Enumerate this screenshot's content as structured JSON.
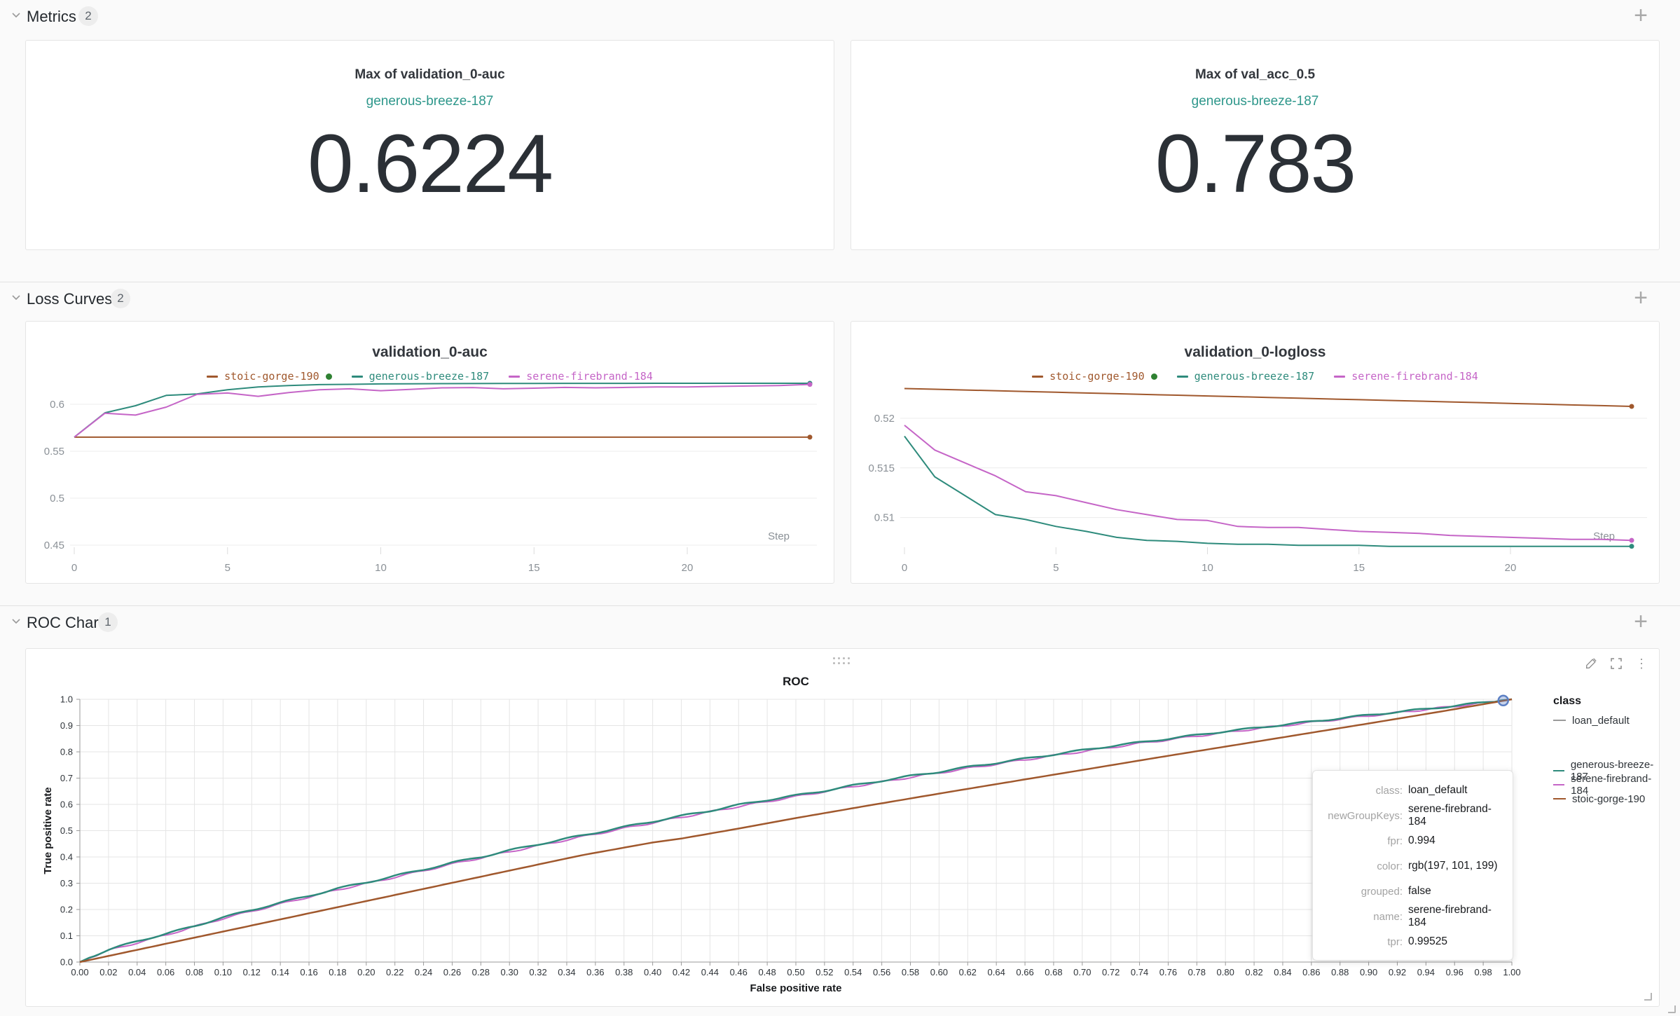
{
  "colors": {
    "teal": "#2e8b7c",
    "teal_link": "#2e978b",
    "magenta": "#c565c7",
    "sienna": "#a0582d",
    "class_gray": "#9a9a9a",
    "live_green": "#2f8132",
    "hover_blue": "#5b7fc4"
  },
  "sections": {
    "metrics": {
      "title": "Metrics",
      "count": "2"
    },
    "loss_curves": {
      "title": "Loss Curves",
      "count": "2"
    },
    "roc_chart": {
      "title": "ROC Chart",
      "count": "1"
    }
  },
  "runs": [
    {
      "name": "stoic-gorge-190",
      "color": "#a0582d",
      "live": true
    },
    {
      "name": "generous-breeze-187",
      "color": "#2e8b7c",
      "live": false
    },
    {
      "name": "serene-firebrand-184",
      "color": "#c565c7",
      "live": false
    }
  ],
  "metric_cards": [
    {
      "title": "Max of validation_0-auc",
      "run_name": "generous-breeze-187",
      "value": "0.6224"
    },
    {
      "title": "Max of val_acc_0.5",
      "run_name": "generous-breeze-187",
      "value": "0.783"
    }
  ],
  "chart_data": [
    {
      "type": "line",
      "title": "validation_0-auc",
      "xlabel": "Step",
      "x": [
        0,
        1,
        2,
        3,
        4,
        5,
        6,
        7,
        8,
        9,
        10,
        11,
        12,
        13,
        14,
        15,
        16,
        17,
        18,
        19,
        20,
        21,
        22,
        23,
        24
      ],
      "xticks": [
        0,
        5,
        10,
        15,
        20
      ],
      "yticks": [
        0.45,
        0.5,
        0.55,
        0.6
      ],
      "ylim": [
        0.442,
        0.624
      ],
      "series": [
        {
          "name": "stoic-gorge-190",
          "values": [
            0.565,
            0.565,
            0.565,
            0.565,
            0.565,
            0.565,
            0.565,
            0.565,
            0.565,
            0.565,
            0.565,
            0.565,
            0.565,
            0.565,
            0.565,
            0.565,
            0.565,
            0.565,
            0.565,
            0.565,
            0.565,
            0.565,
            0.565,
            0.565,
            0.565
          ]
        },
        {
          "name": "generous-breeze-187",
          "values": [
            0.565,
            0.591,
            0.5985,
            0.6095,
            0.611,
            0.6155,
            0.6185,
            0.62,
            0.621,
            0.6213,
            0.6217,
            0.6219,
            0.622,
            0.6221,
            0.6222,
            0.6222,
            0.6223,
            0.6223,
            0.6223,
            0.6224,
            0.6224,
            0.6224,
            0.6224,
            0.6224,
            0.6224
          ]
        },
        {
          "name": "serene-firebrand-184",
          "values": [
            0.565,
            0.5905,
            0.5885,
            0.597,
            0.6105,
            0.612,
            0.6085,
            0.6125,
            0.6155,
            0.6165,
            0.6145,
            0.616,
            0.6175,
            0.6178,
            0.6165,
            0.6172,
            0.618,
            0.6175,
            0.618,
            0.6185,
            0.6185,
            0.619,
            0.6195,
            0.62,
            0.6212
          ]
        }
      ]
    },
    {
      "type": "line",
      "title": "validation_0-logloss",
      "xlabel": "Step",
      "x": [
        0,
        1,
        2,
        3,
        4,
        5,
        6,
        7,
        8,
        9,
        10,
        11,
        12,
        13,
        14,
        15,
        16,
        17,
        18,
        19,
        20,
        21,
        22,
        23,
        24
      ],
      "xticks": [
        0,
        5,
        10,
        15,
        20
      ],
      "yticks": [
        0.51,
        0.515,
        0.52
      ],
      "ylim": [
        0.5064,
        0.5237
      ],
      "series": [
        {
          "name": "stoic-gorge-190",
          "values": [
            0.523,
            0.52293,
            0.52285,
            0.52278,
            0.5227,
            0.52263,
            0.52255,
            0.52248,
            0.5224,
            0.52233,
            0.52225,
            0.52218,
            0.5221,
            0.52203,
            0.52195,
            0.52188,
            0.5218,
            0.52173,
            0.52165,
            0.52158,
            0.5215,
            0.52143,
            0.52135,
            0.52128,
            0.5212
          ]
        },
        {
          "name": "generous-breeze-187",
          "values": [
            0.5182,
            0.5141,
            0.5122,
            0.5103,
            0.5098,
            0.5091,
            0.5086,
            0.508,
            0.5077,
            0.5076,
            0.5074,
            0.5073,
            0.5073,
            0.5072,
            0.5072,
            0.5072,
            0.5071,
            0.5071,
            0.5071,
            0.5071,
            0.5071,
            0.5071,
            0.5071,
            0.5071,
            0.5071
          ]
        },
        {
          "name": "serene-firebrand-184",
          "values": [
            0.5193,
            0.5168,
            0.5155,
            0.5142,
            0.5126,
            0.5122,
            0.5115,
            0.5108,
            0.5103,
            0.5098,
            0.5097,
            0.5091,
            0.509,
            0.509,
            0.5088,
            0.5086,
            0.5085,
            0.5084,
            0.5082,
            0.5081,
            0.508,
            0.5079,
            0.5078,
            0.5078,
            0.5077
          ]
        }
      ]
    },
    {
      "type": "roc",
      "title": "ROC",
      "xlabel": "False positive rate",
      "ylabel": "True positive rate",
      "xlim": [
        0,
        1
      ],
      "ylim": [
        0,
        1
      ],
      "xtick_step": 0.02,
      "ytick_step": 0.1,
      "series": [
        {
          "name": "serene-firebrand-184",
          "points": [
            [
              0,
              0
            ],
            [
              0.02,
              0.044
            ],
            [
              0.06,
              0.103
            ],
            [
              0.1,
              0.166
            ],
            [
              0.14,
              0.221
            ],
            [
              0.18,
              0.275
            ],
            [
              0.22,
              0.323
            ],
            [
              0.26,
              0.373
            ],
            [
              0.3,
              0.42
            ],
            [
              0.34,
              0.465
            ],
            [
              0.38,
              0.509
            ],
            [
              0.42,
              0.551
            ],
            [
              0.46,
              0.592
            ],
            [
              0.5,
              0.63
            ],
            [
              0.54,
              0.668
            ],
            [
              0.58,
              0.703
            ],
            [
              0.62,
              0.737
            ],
            [
              0.66,
              0.77
            ],
            [
              0.7,
              0.801
            ],
            [
              0.74,
              0.832
            ],
            [
              0.78,
              0.86
            ],
            [
              0.82,
              0.887
            ],
            [
              0.86,
              0.912
            ],
            [
              0.9,
              0.937
            ],
            [
              0.94,
              0.961
            ],
            [
              0.98,
              0.986
            ],
            [
              0.994,
              0.99525
            ],
            [
              1,
              1
            ]
          ]
        },
        {
          "name": "generous-breeze-187",
          "points": [
            [
              0,
              0
            ],
            [
              0.01,
              0.025
            ],
            [
              0.02,
              0.046
            ],
            [
              0.04,
              0.08
            ],
            [
              0.06,
              0.107
            ],
            [
              0.08,
              0.137
            ],
            [
              0.1,
              0.17
            ],
            [
              0.12,
              0.198
            ],
            [
              0.14,
              0.226
            ],
            [
              0.16,
              0.252
            ],
            [
              0.18,
              0.28
            ],
            [
              0.2,
              0.303
            ],
            [
              0.22,
              0.328
            ],
            [
              0.24,
              0.352
            ],
            [
              0.26,
              0.378
            ],
            [
              0.28,
              0.4
            ],
            [
              0.3,
              0.425
            ],
            [
              0.32,
              0.448
            ],
            [
              0.34,
              0.47
            ],
            [
              0.36,
              0.492
            ],
            [
              0.38,
              0.514
            ],
            [
              0.4,
              0.535
            ],
            [
              0.42,
              0.556
            ],
            [
              0.44,
              0.576
            ],
            [
              0.46,
              0.598
            ],
            [
              0.48,
              0.617
            ],
            [
              0.5,
              0.634
            ],
            [
              0.52,
              0.652
            ],
            [
              0.54,
              0.672
            ],
            [
              0.56,
              0.69
            ],
            [
              0.58,
              0.708
            ],
            [
              0.6,
              0.724
            ],
            [
              0.62,
              0.742
            ],
            [
              0.64,
              0.758
            ],
            [
              0.66,
              0.774
            ],
            [
              0.68,
              0.79
            ],
            [
              0.7,
              0.806
            ],
            [
              0.72,
              0.822
            ],
            [
              0.74,
              0.836
            ],
            [
              0.76,
              0.85
            ],
            [
              0.78,
              0.864
            ],
            [
              0.8,
              0.878
            ],
            [
              0.82,
              0.89
            ],
            [
              0.84,
              0.903
            ],
            [
              0.86,
              0.915
            ],
            [
              0.88,
              0.928
            ],
            [
              0.9,
              0.94
            ],
            [
              0.92,
              0.952
            ],
            [
              0.94,
              0.963
            ],
            [
              0.96,
              0.975
            ],
            [
              0.98,
              0.988
            ],
            [
              1,
              1
            ]
          ]
        },
        {
          "name": "stoic-gorge-190",
          "points": [
            [
              0,
              0
            ],
            [
              0.05,
              0.058
            ],
            [
              0.1,
              0.116
            ],
            [
              0.15,
              0.174
            ],
            [
              0.2,
              0.232
            ],
            [
              0.25,
              0.29
            ],
            [
              0.3,
              0.348
            ],
            [
              0.35,
              0.406
            ],
            [
              0.4,
              0.455
            ],
            [
              0.42,
              0.47
            ],
            [
              0.46,
              0.508
            ],
            [
              0.5,
              0.548
            ],
            [
              0.55,
              0.595
            ],
            [
              0.6,
              0.641
            ],
            [
              0.65,
              0.686
            ],
            [
              0.7,
              0.731
            ],
            [
              0.75,
              0.776
            ],
            [
              0.8,
              0.82
            ],
            [
              0.85,
              0.864
            ],
            [
              0.9,
              0.908
            ],
            [
              0.95,
              0.953
            ],
            [
              1,
              1
            ]
          ]
        }
      ]
    }
  ],
  "roc_panel": {
    "legend": {
      "title": "class",
      "class_label": "loan_default",
      "class_color": "#9a9a9a",
      "run_order": [
        "generous-breeze-187",
        "serene-firebrand-184",
        "stoic-gorge-190"
      ]
    },
    "tooltip": {
      "rows": [
        {
          "label": "class:",
          "value": "loan_default"
        },
        {
          "label": "newGroupKeys:",
          "value": "serene-firebrand-184"
        },
        {
          "label": "fpr:",
          "value": "0.994"
        },
        {
          "label": "color:",
          "value": "rgb(197, 101, 199)"
        },
        {
          "label": "grouped:",
          "value": "false"
        },
        {
          "label": "name:",
          "value": "serene-firebrand-184"
        },
        {
          "label": "tpr:",
          "value": "0.99525"
        }
      ]
    },
    "hover_point": {
      "fpr": 0.994,
      "tpr": 0.99525
    }
  }
}
